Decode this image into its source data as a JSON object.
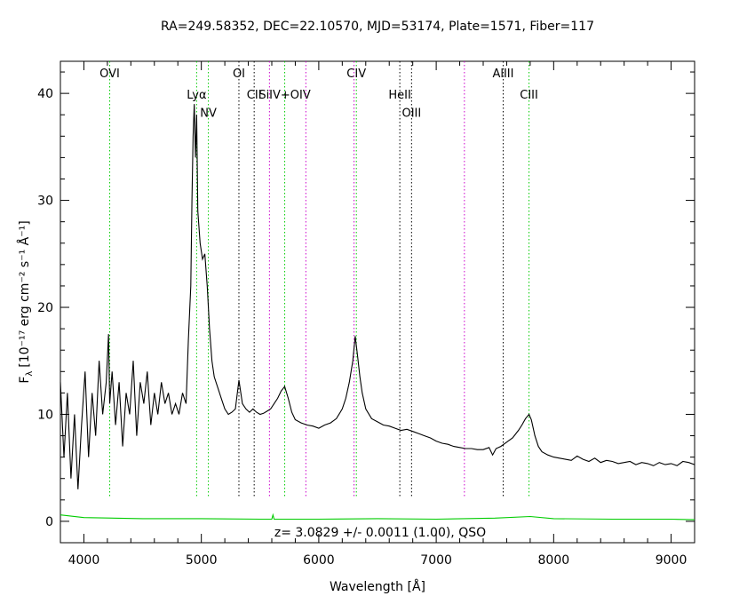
{
  "chart_data": {
    "type": "line",
    "title": "RA=249.58352, DEC=22.10570, MJD=53174, Plate=1571, Fiber=117",
    "xlabel": "Wavelength [Å]",
    "ylabel": "F",
    "ylabel_sub": "λ",
    "ylabel_units": "[10⁻¹⁷ erg cm⁻² s⁻¹ Å⁻¹]",
    "xlim": [
      3800,
      9200
    ],
    "ylim": [
      -2,
      43
    ],
    "x_ticks": [
      4000,
      5000,
      6000,
      7000,
      8000,
      9000
    ],
    "y_ticks": [
      0,
      10,
      20,
      30,
      40
    ],
    "annotation": "z= 3.0829 +/- 0.0011 (1.00), QSO",
    "colors": {
      "flux": "#000000",
      "error": "#00cc00",
      "line_green": "#00cc00",
      "line_magenta": "#cc00cc",
      "line_black": "#000000"
    },
    "emission_lines": [
      {
        "label": "OVI",
        "x": 4220,
        "color": "green",
        "label_y": 41.5
      },
      {
        "label": "Lyα",
        "x": 4960,
        "color": "green",
        "label_y": 39.5
      },
      {
        "label": "NV",
        "x": 5060,
        "color": "green",
        "label_y": 37.8
      },
      {
        "label": "OI",
        "x": 5320,
        "color": "black",
        "label_y": 41.5
      },
      {
        "label": "CII",
        "x": 5450,
        "color": "black",
        "label_y": 39.5
      },
      {
        "label": "",
        "x": 5580,
        "color": "magenta",
        "label_y": null
      },
      {
        "label": "SiIV+OIV",
        "x": 5710,
        "color": "green",
        "label_y": 39.5
      },
      {
        "label": "",
        "x": 5890,
        "color": "magenta",
        "label_y": null
      },
      {
        "label": "CIV",
        "x": 6320,
        "color": "green",
        "label_y": 41.5
      },
      {
        "label": "",
        "x": 6300,
        "color": "magenta",
        "label_y": null
      },
      {
        "label": "HeII",
        "x": 6690,
        "color": "black",
        "label_y": 39.5
      },
      {
        "label": "OIII",
        "x": 6790,
        "color": "black",
        "label_y": 37.8
      },
      {
        "label": "",
        "x": 7240,
        "color": "magenta",
        "label_y": null
      },
      {
        "label": "AlIII",
        "x": 7570,
        "color": "black",
        "label_y": 41.5
      },
      {
        "label": "CIII",
        "x": 7790,
        "color": "green",
        "label_y": 39.5
      }
    ],
    "series": [
      {
        "style": "flux",
        "x": [
          3800,
          3830,
          3860,
          3890,
          3920,
          3950,
          3980,
          4010,
          4040,
          4070,
          4100,
          4130,
          4160,
          4190,
          4210,
          4220,
          4240,
          4270,
          4300,
          4330,
          4360,
          4390,
          4420,
          4450,
          4480,
          4510,
          4540,
          4570,
          4600,
          4630,
          4660,
          4690,
          4720,
          4750,
          4780,
          4810,
          4840,
          4870,
          4890,
          4910,
          4920,
          4930,
          4940,
          4950,
          4960,
          4970,
          4990,
          5010,
          5030,
          5050,
          5070,
          5090,
          5110,
          5140,
          5170,
          5200,
          5230,
          5260,
          5290,
          5320,
          5350,
          5380,
          5410,
          5440,
          5470,
          5500,
          5530,
          5560,
          5590,
          5620,
          5650,
          5680,
          5710,
          5740,
          5770,
          5800,
          5850,
          5900,
          5950,
          6000,
          6050,
          6100,
          6150,
          6200,
          6230,
          6260,
          6290,
          6310,
          6330,
          6350,
          6370,
          6400,
          6450,
          6500,
          6550,
          6600,
          6650,
          6700,
          6750,
          6800,
          6850,
          6900,
          6950,
          7000,
          7050,
          7100,
          7150,
          7200,
          7250,
          7300,
          7350,
          7400,
          7450,
          7480,
          7510,
          7550,
          7600,
          7650,
          7700,
          7730,
          7760,
          7790,
          7810,
          7840,
          7870,
          7900,
          7950,
          8000,
          8050,
          8100,
          8150,
          8200,
          8250,
          8300,
          8350,
          8400,
          8450,
          8500,
          8550,
          8600,
          8650,
          8700,
          8750,
          8800,
          8850,
          8900,
          8950,
          9000,
          9050,
          9100,
          9150,
          9200
        ],
        "y": [
          13,
          6,
          12,
          4,
          10,
          3,
          9,
          14,
          6,
          12,
          8,
          15,
          10,
          13,
          17.5,
          11,
          14,
          9,
          13,
          7,
          12,
          10,
          15,
          8,
          13,
          11,
          14,
          9,
          12,
          10,
          13,
          11,
          12,
          10,
          11,
          10,
          12,
          11,
          17,
          22,
          30,
          36,
          39,
          34,
          38,
          29,
          26,
          24.5,
          25,
          22,
          18,
          15,
          13.5,
          12.5,
          11.5,
          10.5,
          10,
          10.2,
          10.5,
          13.2,
          11,
          10.5,
          10.2,
          10.5,
          10.2,
          10,
          10.1,
          10.3,
          10.5,
          11,
          11.5,
          12.2,
          12.6,
          11.5,
          10.2,
          9.5,
          9.2,
          9.0,
          8.9,
          8.7,
          9.0,
          9.2,
          9.6,
          10.5,
          11.5,
          13,
          15,
          17.3,
          15.5,
          13.5,
          12,
          10.5,
          9.6,
          9.3,
          9.0,
          8.9,
          8.7,
          8.5,
          8.6,
          8.4,
          8.2,
          8.0,
          7.8,
          7.5,
          7.3,
          7.2,
          7.0,
          6.9,
          6.8,
          6.8,
          6.7,
          6.7,
          6.9,
          6.2,
          6.8,
          7.0,
          7.4,
          7.8,
          8.5,
          9.0,
          9.6,
          10.0,
          9.5,
          8.0,
          7.0,
          6.5,
          6.2,
          6.0,
          5.9,
          5.8,
          5.7,
          6.1,
          5.8,
          5.6,
          5.9,
          5.5,
          5.7,
          5.6,
          5.4,
          5.5,
          5.6,
          5.3,
          5.5,
          5.4,
          5.2,
          5.5,
          5.3,
          5.4,
          5.2,
          5.6,
          5.5,
          5.3
        ]
      },
      {
        "style": "error",
        "x": [
          3800,
          4000,
          4500,
          5000,
          5500,
          5600,
          5610,
          5620,
          6000,
          6500,
          7000,
          7500,
          7800,
          8000,
          8500,
          9000,
          9200
        ],
        "y": [
          0.6,
          0.35,
          0.25,
          0.25,
          0.2,
          0.2,
          0.6,
          0.2,
          0.2,
          0.25,
          0.2,
          0.3,
          0.45,
          0.25,
          0.2,
          0.2,
          0.15
        ]
      }
    ],
    "legend": "none",
    "grid": false
  }
}
